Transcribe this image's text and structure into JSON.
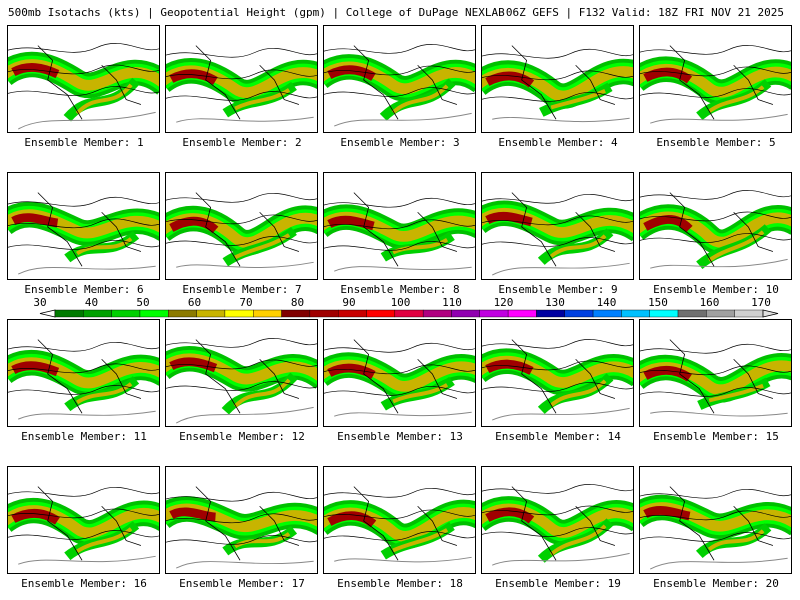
{
  "header": {
    "left": "500mb Isotachs (kts) | Geopotential Height (gpm) | College of DuPage NEXLAB",
    "right": "06Z GEFS | F132 Valid: 18Z FRI NOV 21 2025"
  },
  "members": [
    "Ensemble Member: 1",
    "Ensemble Member: 2",
    "Ensemble Member: 3",
    "Ensemble Member: 4",
    "Ensemble Member: 5",
    "Ensemble Member: 6",
    "Ensemble Member: 7",
    "Ensemble Member: 8",
    "Ensemble Member: 9",
    "Ensemble Member: 10",
    "Ensemble Member: 11",
    "Ensemble Member: 12",
    "Ensemble Member: 13",
    "Ensemble Member: 14",
    "Ensemble Member: 15",
    "Ensemble Member: 16",
    "Ensemble Member: 17",
    "Ensemble Member: 18",
    "Ensemble Member: 19",
    "Ensemble Member: 20"
  ],
  "colorbar": {
    "labels": [
      "30",
      "40",
      "50",
      "60",
      "70",
      "80",
      "90",
      "100",
      "110",
      "120",
      "130",
      "140",
      "150",
      "160",
      "170"
    ],
    "colors": [
      "#007a00",
      "#00a000",
      "#00d000",
      "#00ff00",
      "#8b7a00",
      "#c8b400",
      "#ffff00",
      "#ffd000",
      "#800000",
      "#a00000",
      "#c80000",
      "#ff0000",
      "#e00040",
      "#b00080",
      "#9000b0",
      "#c000e0",
      "#ff00ff",
      "#0000a0",
      "#0040e0",
      "#0080ff",
      "#00c0ff",
      "#00ffff",
      "#707070",
      "#a0a0a0",
      "#d0d0d0"
    ]
  }
}
